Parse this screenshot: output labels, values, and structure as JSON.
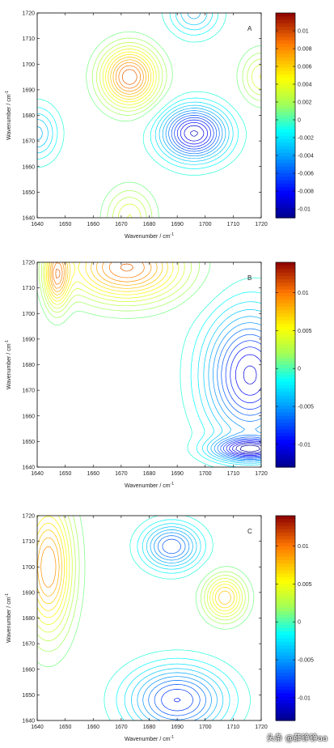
{
  "chart_data": [
    {
      "type": "contour",
      "panel_label": "A",
      "xlabel": "Wavenumber / cm",
      "ylabel": "Wavenumber / cm",
      "axis_unit_superscript": "-1",
      "xlim": [
        1640,
        1720
      ],
      "ylim": [
        1640,
        1720
      ],
      "x_ticks": [
        "1640",
        "1650",
        "1660",
        "1670",
        "1680",
        "1690",
        "1700",
        "1710",
        "1720"
      ],
      "y_ticks": [
        "1640",
        "1650",
        "1660",
        "1670",
        "1680",
        "1690",
        "1700",
        "1710",
        "1720"
      ],
      "colorbar": {
        "range": [
          -0.011,
          0.012
        ],
        "ticks": [
          0.01,
          0.008,
          0.006,
          0.004,
          0.002,
          0,
          -0.002,
          -0.004,
          -0.006,
          -0.008,
          -0.01
        ],
        "tick_labels": [
          "0.01",
          "0.008",
          "0.006",
          "0.004",
          "0.002",
          "0",
          "-0.002",
          "-0.004",
          "-0.006",
          "-0.008",
          "-0.01"
        ]
      },
      "features": [
        {
          "x": 1673,
          "y": 1695,
          "amp": 0.01,
          "sx": 7,
          "sy": 8
        },
        {
          "x": 1696,
          "y": 1673,
          "amp": -0.01,
          "sx": 8,
          "sy": 7
        },
        {
          "x": 1640,
          "y": 1673,
          "amp": -0.004,
          "sx": 5,
          "sy": 7
        },
        {
          "x": 1720,
          "y": 1695,
          "amp": 0.004,
          "sx": 5,
          "sy": 7
        },
        {
          "x": 1673,
          "y": 1640,
          "amp": 0.004,
          "sx": 6,
          "sy": 8
        },
        {
          "x": 1696,
          "y": 1720,
          "amp": -0.004,
          "sx": 6,
          "sy": 6
        }
      ]
    },
    {
      "type": "contour",
      "panel_label": "B",
      "xlabel": "Wavenumber / cm",
      "ylabel": "Wavenumber / cm",
      "axis_unit_superscript": "-1",
      "xlim": [
        1640,
        1720
      ],
      "ylim": [
        1640,
        1720
      ],
      "x_ticks": [
        "1640",
        "1650",
        "1660",
        "1670",
        "1680",
        "1690",
        "1700",
        "1710",
        "1720"
      ],
      "y_ticks": [
        "1640",
        "1650",
        "1660",
        "1670",
        "1680",
        "1690",
        "1700",
        "1710",
        "1720"
      ],
      "colorbar": {
        "range": [
          -0.013,
          0.014
        ],
        "ticks": [
          0.01,
          0.005,
          0,
          -0.005,
          -0.01
        ],
        "tick_labels": [
          "0.01",
          "0.005",
          "0",
          "-0.005",
          "-0.01"
        ]
      },
      "features": [
        {
          "x": 1672,
          "y": 1718,
          "amp": 0.011,
          "sx": 14,
          "sy": 9
        },
        {
          "x": 1647,
          "y": 1715,
          "amp": 0.009,
          "sx": 3,
          "sy": 9
        },
        {
          "x": 1716,
          "y": 1676,
          "amp": -0.011,
          "sx": 11,
          "sy": 17
        },
        {
          "x": 1716,
          "y": 1647,
          "amp": -0.011,
          "sx": 9,
          "sy": 3
        }
      ]
    },
    {
      "type": "contour",
      "panel_label": "C",
      "xlabel": "Wavenumber / cm",
      "ylabel": "Wavenumber / cm",
      "axis_unit_superscript": "-1",
      "xlim": [
        1640,
        1720
      ],
      "ylim": [
        1640,
        1720
      ],
      "x_ticks": [
        "1640",
        "1650",
        "1660",
        "1670",
        "1680",
        "1690",
        "1700",
        "1710",
        "1720"
      ],
      "y_ticks": [
        "1640",
        "1650",
        "1660",
        "1670",
        "1680",
        "1690",
        "1700",
        "1710",
        "1720"
      ],
      "colorbar": {
        "range": [
          -0.013,
          0.014
        ],
        "ticks": [
          0.01,
          0.005,
          0,
          -0.005,
          -0.01
        ],
        "tick_labels": [
          "0.01",
          "0.005",
          "0",
          "-0.005",
          "-0.01"
        ]
      },
      "features": [
        {
          "x": 1644,
          "y": 1700,
          "amp": 0.01,
          "sx": 6,
          "sy": 18
        },
        {
          "x": 1707,
          "y": 1688,
          "amp": 0.008,
          "sx": 5,
          "sy": 6
        },
        {
          "x": 1688,
          "y": 1708,
          "amp": -0.008,
          "sx": 7,
          "sy": 6
        },
        {
          "x": 1690,
          "y": 1648,
          "amp": -0.009,
          "sx": 12,
          "sy": 9
        }
      ]
    }
  ],
  "watermark": "头条 @薛铮铮aa"
}
